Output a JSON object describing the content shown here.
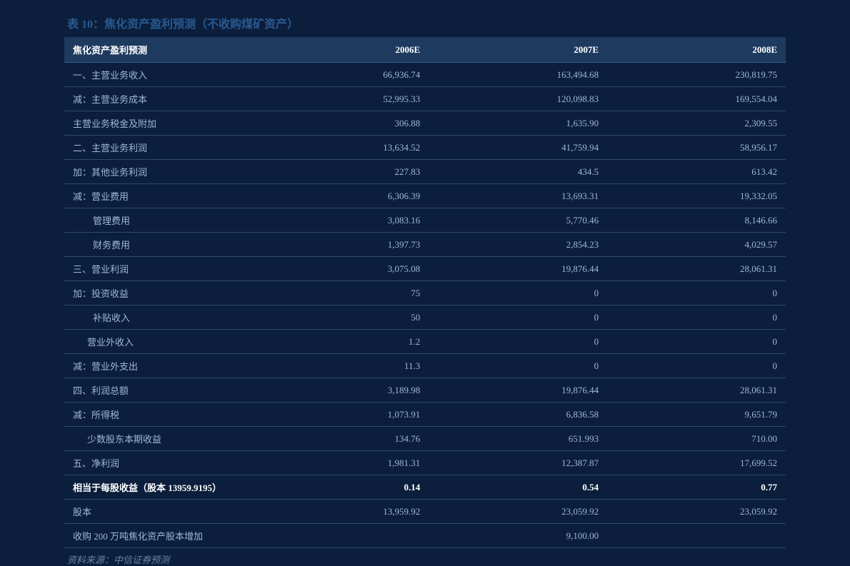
{
  "title": "表 10：焦化资产盈利预测（不收购煤矿资产）",
  "source": "资料来源：中信证券预测",
  "header": {
    "col0": "焦化资产盈利预测",
    "col1": "2006E",
    "col2": "2007E",
    "col3": "2008E"
  },
  "rows": [
    {
      "label": "一、主营业务收入",
      "v1": "66,936.74",
      "v2": "163,494.68",
      "v3": "230,819.75",
      "indent": 0,
      "bold": false
    },
    {
      "label": "减：主营业务成本",
      "v1": "52,995.33",
      "v2": "120,098.83",
      "v3": "169,554.04",
      "indent": 0,
      "bold": false
    },
    {
      "label": "主营业务税金及附加",
      "v1": "306.88",
      "v2": "1,635.90",
      "v3": "2,309.55",
      "indent": 0,
      "bold": false
    },
    {
      "label": "二、主营业务利润",
      "v1": "13,634.52",
      "v2": "41,759.94",
      "v3": "58,956.17",
      "indent": 0,
      "bold": false
    },
    {
      "label": "加：其他业务利润",
      "v1": "227.83",
      "v2": "434.5",
      "v3": "613.42",
      "indent": 0,
      "bold": false
    },
    {
      "label": "减：营业费用",
      "v1": "6,306.39",
      "v2": "13,693.31",
      "v3": "19,332.05",
      "indent": 0,
      "bold": false
    },
    {
      "label": "管理费用",
      "v1": "3,083.16",
      "v2": "5,770.46",
      "v3": "8,146.66",
      "indent": 1,
      "bold": false
    },
    {
      "label": "财务费用",
      "v1": "1,397.73",
      "v2": "2,854.23",
      "v3": "4,029.57",
      "indent": 1,
      "bold": false
    },
    {
      "label": "三、营业利润",
      "v1": "3,075.08",
      "v2": "19,876.44",
      "v3": "28,061.31",
      "indent": 0,
      "bold": false
    },
    {
      "label": "加：投资收益",
      "v1": "75",
      "v2": "0",
      "v3": "0",
      "indent": 0,
      "bold": false
    },
    {
      "label": "补贴收入",
      "v1": "50",
      "v2": "0",
      "v3": "0",
      "indent": 1,
      "bold": false
    },
    {
      "label": "营业外收入",
      "v1": "1.2",
      "v2": "0",
      "v3": "0",
      "indent": 2,
      "bold": false
    },
    {
      "label": "减：营业外支出",
      "v1": "11.3",
      "v2": "0",
      "v3": "0",
      "indent": 0,
      "bold": false
    },
    {
      "label": "四、利润总额",
      "v1": "3,189.98",
      "v2": "19,876.44",
      "v3": "28,061.31",
      "indent": 0,
      "bold": false
    },
    {
      "label": "减：所得税",
      "v1": "1,073.91",
      "v2": "6,836.58",
      "v3": "9,651.79",
      "indent": 0,
      "bold": false
    },
    {
      "label": "少数股东本期收益",
      "v1": "134.76",
      "v2": "651.993",
      "v3": "710.00",
      "indent": 2,
      "bold": false
    },
    {
      "label": "五、净利润",
      "v1": "1,981.31",
      "v2": "12,387.87",
      "v3": "17,699.52",
      "indent": 0,
      "bold": false
    },
    {
      "label": "相当于每股收益（股本 13959.9195）",
      "v1": "0.14",
      "v2": "0.54",
      "v3": "0.77",
      "indent": 0,
      "bold": true
    },
    {
      "label": "股本",
      "v1": "13,959.92",
      "v2": "23,059.92",
      "v3": "23,059.92",
      "indent": 0,
      "bold": false
    },
    {
      "label": "收购 200 万吨焦化资产股本增加",
      "v1": "",
      "v2": "9,100.00",
      "v3": "",
      "indent": 0,
      "bold": false
    }
  ]
}
